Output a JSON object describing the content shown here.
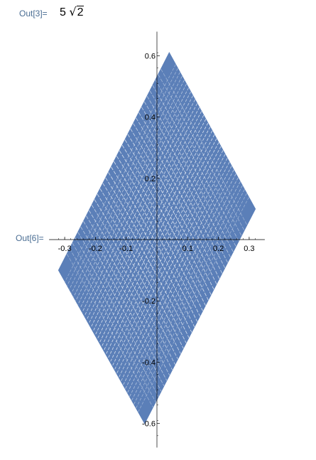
{
  "cells": [
    {
      "label": "Out[3]=",
      "expression": {
        "coefficient": "5",
        "radical_symbol": "√",
        "radicand": "2"
      }
    },
    {
      "label": "Out[6]="
    }
  ],
  "chart_data": {
    "type": "line",
    "description_of_marks": "parametric curve filling a rhombus; vertices at the listed x/y points",
    "series": [
      {
        "color": "#5b7fb8",
        "x": [
          0.04,
          0.32,
          -0.04,
          -0.32,
          0.04
        ],
        "y": [
          0.61,
          0.1,
          -0.6,
          -0.1,
          0.61
        ]
      }
    ],
    "x_ticks": [
      -0.3,
      -0.2,
      -0.1,
      0.1,
      0.2,
      0.3
    ],
    "y_ticks": [
      0.6,
      0.4,
      0.2,
      -0.2,
      -0.4,
      -0.6
    ],
    "x_tick_labels": [
      "-0.3",
      "-0.2",
      "-0.1",
      "0.1",
      "0.2",
      "0.3"
    ],
    "y_tick_labels": [
      "0.6",
      "0.4",
      "0.2",
      "-0.2",
      "-0.4",
      "-0.6"
    ],
    "xlim": [
      -0.33,
      0.33
    ],
    "ylim": [
      -0.66,
      0.66
    ],
    "grid": false
  },
  "colors": {
    "label": "#4a6d93",
    "series": "#5b7fb8",
    "axis": "#000000"
  }
}
